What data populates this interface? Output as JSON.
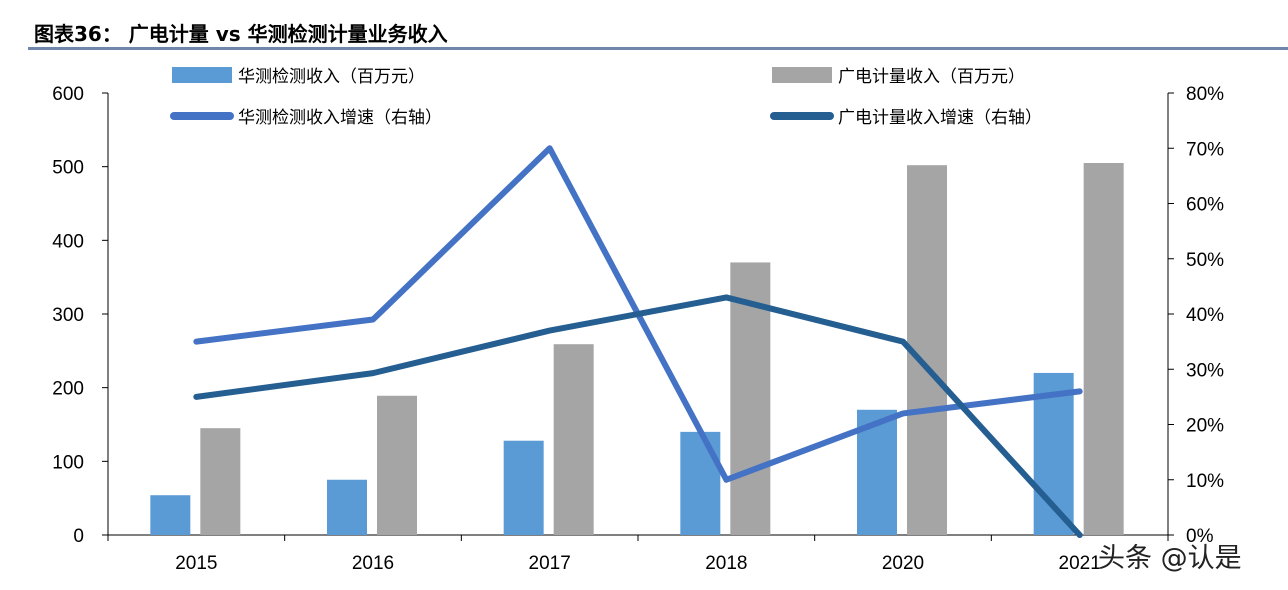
{
  "title": "图表36： 广电计量 vs 华测检测计量业务收入",
  "watermark": "头条 @认是",
  "chart_data": {
    "type": "bar+line",
    "categories": [
      "2015",
      "2016",
      "2017",
      "2018",
      "2020",
      "2021"
    ],
    "ylim": [
      0,
      600
    ],
    "y_ticks": [
      "0",
      "100",
      "200",
      "300",
      "400",
      "500",
      "600"
    ],
    "y2lim": [
      0,
      80
    ],
    "y2_ticks": [
      "0%",
      "10%",
      "20%",
      "30%",
      "40%",
      "50%",
      "60%",
      "70%",
      "80%"
    ],
    "legend_position": "top",
    "grid": false,
    "series": [
      {
        "name": "华测检测收入（百万元）",
        "type": "bar",
        "axis": "left",
        "color": "#5b9bd5",
        "values": [
          54,
          75,
          128,
          140,
          170,
          220
        ]
      },
      {
        "name": "广电计量收入（百万元）",
        "type": "bar",
        "axis": "left",
        "color": "#a5a5a5",
        "values": [
          145,
          189,
          259,
          370,
          502,
          505
        ]
      },
      {
        "name": "华测检测收入增速（右轴）",
        "type": "line",
        "axis": "right",
        "color": "#4472c4",
        "values": [
          35,
          39,
          70,
          10,
          22,
          26
        ]
      },
      {
        "name": "广电计量收入增速（右轴）",
        "type": "line",
        "axis": "right",
        "color": "#255e91",
        "values": [
          25,
          29.3,
          37,
          43,
          35,
          0
        ]
      }
    ]
  }
}
